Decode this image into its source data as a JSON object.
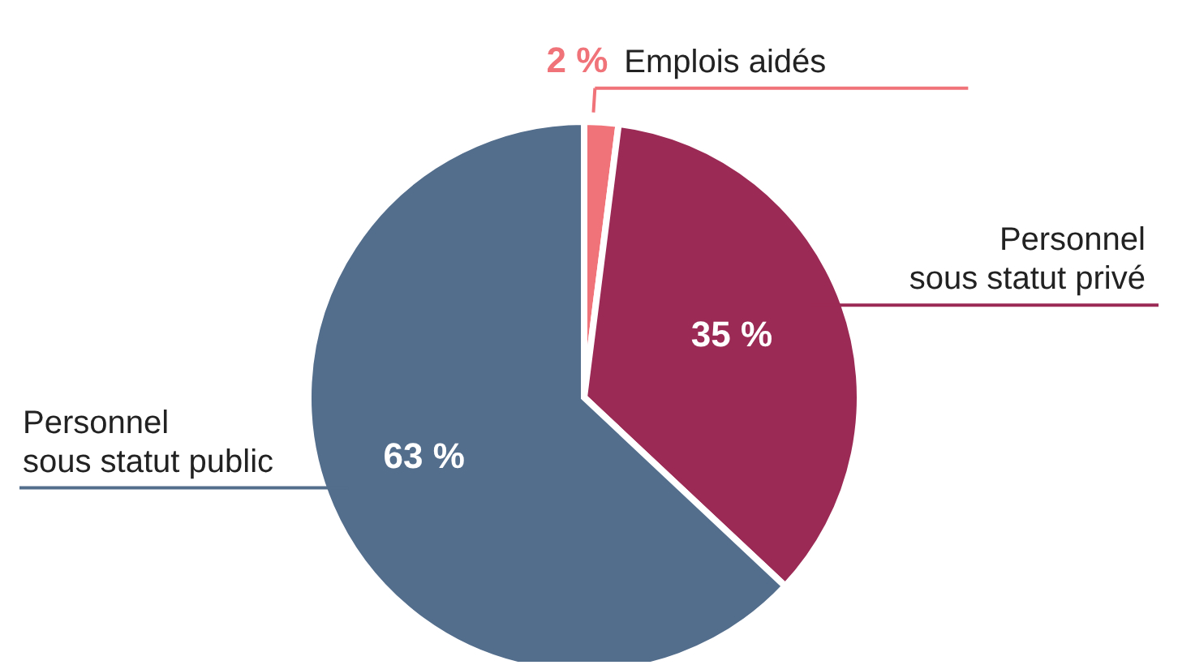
{
  "chart_data": {
    "type": "pie",
    "categories": [
      "Emplois aidés",
      "Personnel sous statut privé",
      "Personnel sous statut public"
    ],
    "values": [
      2,
      35,
      63
    ],
    "colors": [
      "#f0737a",
      "#9b2a54",
      "#536d8c"
    ],
    "value_labels": [
      "2 %",
      "35 %",
      "63 %"
    ]
  }
}
